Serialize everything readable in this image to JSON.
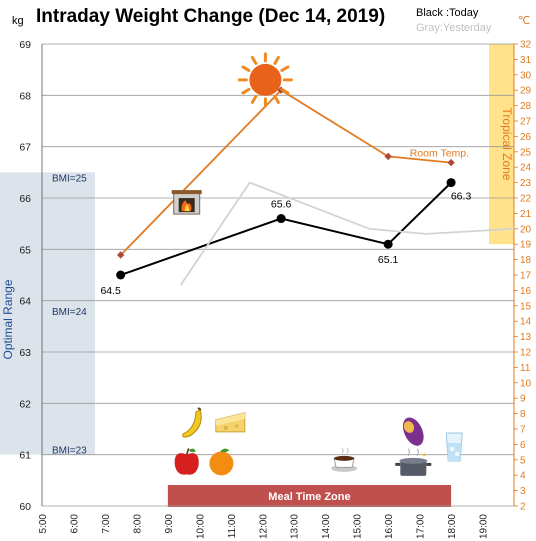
{
  "chart_data": {
    "type": "line",
    "title": "Intraday Weight Change (Dec 14, 2019)",
    "legend": {
      "today": "Black :Today",
      "yesterday": "Gray:Yesterday",
      "placement": "top-right"
    },
    "y_left": {
      "unit": "kg",
      "min": 60,
      "max": 69,
      "ticks": [
        "69",
        "68",
        "67",
        "66",
        "65",
        "64",
        "63",
        "62",
        "61",
        "60"
      ]
    },
    "y_right": {
      "unit": "℃",
      "min": 2,
      "max": 32,
      "ticks": [
        "32",
        "31",
        "30",
        "29",
        "28",
        "27",
        "26",
        "25",
        "24",
        "23",
        "22",
        "21",
        "20",
        "19",
        "18",
        "17",
        "16",
        "15",
        "14",
        "13",
        "12",
        "11",
        "10",
        "9",
        "8",
        "7",
        "6",
        "5",
        "4",
        "3",
        "2"
      ]
    },
    "x_axis": {
      "min": 5,
      "max": 20,
      "ticks": [
        "5:00",
        "6:00",
        "7:00",
        "8:00",
        "9:00",
        "10:00",
        "11:00",
        "12:00",
        "13:00",
        "14:00",
        "15:00",
        "16:00",
        "17:00",
        "18:00",
        "19:00"
      ]
    },
    "series": [
      {
        "key": "today",
        "name": "Today",
        "color": "#000000",
        "axis": "left",
        "x": [
          7.5,
          12.6,
          16.0,
          18.0
        ],
        "y": [
          64.5,
          65.6,
          65.1,
          66.3
        ],
        "labels": [
          "64.5",
          "65.6",
          "65.1",
          "66.3"
        ]
      },
      {
        "key": "yesterday",
        "name": "Yesterday",
        "color": "#d3d3d3",
        "axis": "left",
        "x": [
          9.4,
          11.6,
          15.4,
          17.2,
          20.0
        ],
        "y": [
          64.3,
          66.3,
          65.4,
          65.3,
          65.4
        ]
      },
      {
        "key": "room_temp",
        "name": "Room Temp.",
        "color": "#e07b22",
        "axis": "right",
        "x": [
          7.5,
          12.6,
          16.0,
          18.0
        ],
        "y": [
          18.3,
          29.0,
          24.7,
          24.3
        ]
      }
    ],
    "bands": {
      "optimal_range": {
        "label": "Optimal Range",
        "y_from": 61,
        "y_to": 66.5,
        "color": "#dce3ea"
      },
      "tropical_zone": {
        "label": "Tropical Zone",
        "temp_from": 19,
        "temp_to": 32,
        "color": "#ffe28a"
      },
      "meal_time_zone": {
        "label": "Meal Time Zone",
        "x_from": 9,
        "x_to": 18,
        "color": "#c0504d"
      }
    },
    "bmi_markers": [
      {
        "label": "BMI=25",
        "y": 66.4
      },
      {
        "label": "BMI=24",
        "y": 63.8
      },
      {
        "label": "BMI=23",
        "y": 61.1
      }
    ],
    "icons": [
      {
        "name": "sun-icon",
        "x": 12.1,
        "y": 68.3
      },
      {
        "name": "fireplace-icon",
        "x": 9.6,
        "y": 65.9
      },
      {
        "name": "banana-icon",
        "x": 9.8,
        "y": 61.6
      },
      {
        "name": "cheese-icon",
        "x": 11.0,
        "y": 61.6
      },
      {
        "name": "apple-icon",
        "x": 9.6,
        "y": 60.85
      },
      {
        "name": "orange-icon",
        "x": 10.7,
        "y": 60.85
      },
      {
        "name": "coffee-icon",
        "x": 14.6,
        "y": 60.85
      },
      {
        "name": "sweet-potato-icon",
        "x": 16.8,
        "y": 61.45
      },
      {
        "name": "cooking-pot-icon",
        "x": 16.8,
        "y": 60.8
      },
      {
        "name": "water-glass-icon",
        "x": 18.1,
        "y": 61.15
      }
    ],
    "grid": true
  }
}
